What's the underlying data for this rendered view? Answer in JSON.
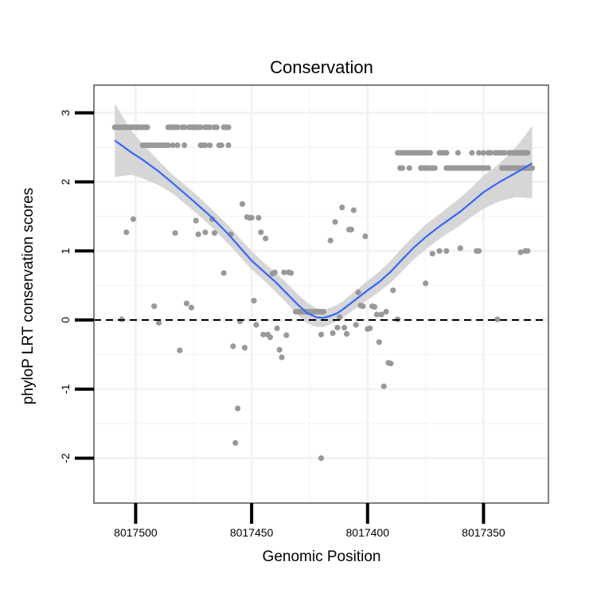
{
  "chart_data": {
    "type": "scatter",
    "title": "Conservation",
    "xlabel": "Genomic Position",
    "ylabel": "phyloP LRT conservation scores",
    "x_reversed": true,
    "xlim": [
      8017518,
      8017322
    ],
    "ylim": [
      -2.65,
      3.4
    ],
    "x_ticks": [
      8017500,
      8017450,
      8017400,
      8017350
    ],
    "x_tick_labels": [
      "8017500",
      "8017450",
      "8017400",
      "8017350"
    ],
    "y_ticks": [
      -2,
      -1,
      0,
      1,
      2,
      3
    ],
    "y_tick_labels": [
      "-2",
      "-1",
      "0",
      "1",
      "2",
      "3"
    ],
    "reference_line": {
      "y": 0,
      "style": "dashed"
    },
    "colors": {
      "points": "#999999",
      "smooth": "#3366ff",
      "ribbon": "#d6d6d6",
      "grid": "#f2f2f2",
      "panel_border": "#7f7f7f"
    },
    "series": [
      {
        "name": "scores",
        "kind": "points",
        "points": [
          [
            8017509,
            2.79
          ],
          [
            8017508,
            2.79
          ],
          [
            8017507,
            2.79
          ],
          [
            8017506,
            2.79
          ],
          [
            8017505,
            2.79
          ],
          [
            8017504,
            2.79
          ],
          [
            8017503,
            2.79
          ],
          [
            8017502,
            2.79
          ],
          [
            8017501,
            2.79
          ],
          [
            8017500,
            2.79
          ],
          [
            8017499,
            2.79
          ],
          [
            8017498,
            2.79
          ],
          [
            8017497,
            2.79
          ],
          [
            8017496,
            2.79
          ],
          [
            8017495,
            2.79
          ],
          [
            8017497,
            2.53
          ],
          [
            8017496,
            2.53
          ],
          [
            8017495,
            2.53
          ],
          [
            8017494,
            2.53
          ],
          [
            8017493,
            2.53
          ],
          [
            8017492,
            2.53
          ],
          [
            8017491,
            2.53
          ],
          [
            8017490,
            2.53
          ],
          [
            8017489,
            2.53
          ],
          [
            8017488,
            2.53
          ],
          [
            8017487,
            2.53
          ],
          [
            8017486,
            2.53
          ],
          [
            8017484,
            2.53
          ],
          [
            8017482,
            2.53
          ],
          [
            8017479,
            2.53
          ],
          [
            8017486,
            2.79
          ],
          [
            8017485,
            2.79
          ],
          [
            8017484,
            2.79
          ],
          [
            8017483,
            2.79
          ],
          [
            8017482,
            2.79
          ],
          [
            8017480,
            2.79
          ],
          [
            8017479,
            2.79
          ],
          [
            8017477,
            2.79
          ],
          [
            8017476,
            2.79
          ],
          [
            8017475,
            2.79
          ],
          [
            8017474,
            2.79
          ],
          [
            8017473,
            2.79
          ],
          [
            8017472,
            2.79
          ],
          [
            8017470,
            2.79
          ],
          [
            8017469,
            2.79
          ],
          [
            8017468,
            2.79
          ],
          [
            8017466,
            2.79
          ],
          [
            8017465,
            2.79
          ],
          [
            8017462,
            2.79
          ],
          [
            8017461,
            2.79
          ],
          [
            8017460,
            2.79
          ],
          [
            8017472,
            2.53
          ],
          [
            8017471,
            2.53
          ],
          [
            8017470,
            2.53
          ],
          [
            8017468,
            2.53
          ],
          [
            8017464,
            2.53
          ],
          [
            8017463,
            2.53
          ],
          [
            8017460,
            2.53
          ],
          [
            8017506,
            0.01
          ],
          [
            8017504,
            1.27
          ],
          [
            8017501,
            1.46
          ],
          [
            8017492,
            0.2
          ],
          [
            8017490,
            -0.04
          ],
          [
            8017483,
            1.26
          ],
          [
            8017481,
            -0.44
          ],
          [
            8017478,
            0.24
          ],
          [
            8017476,
            0.18
          ],
          [
            8017474,
            1.44
          ],
          [
            8017473,
            1.24
          ],
          [
            8017470,
            1.27
          ],
          [
            8017467,
            1.46
          ],
          [
            8017466,
            1.26
          ],
          [
            8017462,
            0.68
          ],
          [
            8017459,
            1.24
          ],
          [
            8017458,
            -0.38
          ],
          [
            8017457,
            -1.78
          ],
          [
            8017456,
            -1.28
          ],
          [
            8017455,
            -0.02
          ],
          [
            8017454,
            1.68
          ],
          [
            8017453,
            -0.4
          ],
          [
            8017452,
            1.49
          ],
          [
            8017451,
            1.48
          ],
          [
            8017450,
            1.48
          ],
          [
            8017449,
            0.28
          ],
          [
            8017448,
            -0.07
          ],
          [
            8017447,
            1.48
          ],
          [
            8017446,
            1.27
          ],
          [
            8017445,
            -0.21
          ],
          [
            8017444,
            1.18
          ],
          [
            8017443,
            -0.21
          ],
          [
            8017442,
            -0.25
          ],
          [
            8017441,
            0.67
          ],
          [
            8017440,
            0.69
          ],
          [
            8017439,
            -0.12
          ],
          [
            8017438,
            -0.43
          ],
          [
            8017437,
            -0.54
          ],
          [
            8017436,
            0.69
          ],
          [
            8017435,
            -0.22
          ],
          [
            8017434,
            0.69
          ],
          [
            8017433,
            0.68
          ],
          [
            8017431,
            0.12
          ],
          [
            8017430,
            0.12
          ],
          [
            8017429,
            0.12
          ],
          [
            8017428,
            0.12
          ],
          [
            8017427,
            0.12
          ],
          [
            8017426,
            0.12
          ],
          [
            8017425,
            0.12
          ],
          [
            8017424,
            0.12
          ],
          [
            8017423,
            0.12
          ],
          [
            8017422,
            0.12
          ],
          [
            8017421,
            0.12
          ],
          [
            8017420,
            0.12
          ],
          [
            8017419,
            0.12
          ],
          [
            8017420,
            -2.0
          ],
          [
            8017420,
            -0.21
          ],
          [
            8017416,
            1.15
          ],
          [
            8017415,
            -0.19
          ],
          [
            8017414,
            1.42
          ],
          [
            8017413,
            -0.11
          ],
          [
            8017412,
            0.04
          ],
          [
            8017411,
            1.63
          ],
          [
            8017410,
            -0.11
          ],
          [
            8017409,
            -0.2
          ],
          [
            8017408,
            1.31
          ],
          [
            8017407,
            1.31
          ],
          [
            8017406,
            1.59
          ],
          [
            8017405,
            -0.07
          ],
          [
            8017404,
            0.4
          ],
          [
            8017403,
            0.21
          ],
          [
            8017402,
            0.2
          ],
          [
            8017401,
            1.21
          ],
          [
            8017400,
            -0.13
          ],
          [
            8017399,
            -0.12
          ],
          [
            8017398,
            0.2
          ],
          [
            8017397,
            0.19
          ],
          [
            8017396,
            0.08
          ],
          [
            8017395,
            -0.32
          ],
          [
            8017394,
            0.08
          ],
          [
            8017393,
            -0.96
          ],
          [
            8017392,
            0.12
          ],
          [
            8017391,
            -0.62
          ],
          [
            8017390,
            -0.63
          ],
          [
            8017389,
            0.43
          ],
          [
            8017387,
            0.01
          ],
          [
            8017375,
            0.53
          ],
          [
            8017372,
            0.96
          ],
          [
            8017369,
            1.0
          ],
          [
            8017366,
            1.0
          ],
          [
            8017360,
            1.04
          ],
          [
            8017353,
            1.0
          ],
          [
            8017352,
            1.0
          ],
          [
            8017344,
            0.01
          ],
          [
            8017334,
            0.98
          ],
          [
            8017332,
            1.0
          ],
          [
            8017331,
            1.0
          ],
          [
            8017387,
            2.42
          ],
          [
            8017386,
            2.42
          ],
          [
            8017385,
            2.42
          ],
          [
            8017384,
            2.42
          ],
          [
            8017383,
            2.42
          ],
          [
            8017382,
            2.42
          ],
          [
            8017381,
            2.42
          ],
          [
            8017380,
            2.42
          ],
          [
            8017379,
            2.42
          ],
          [
            8017378,
            2.42
          ],
          [
            8017377,
            2.42
          ],
          [
            8017376,
            2.42
          ],
          [
            8017375,
            2.42
          ],
          [
            8017374,
            2.42
          ],
          [
            8017373,
            2.42
          ],
          [
            8017369,
            2.42
          ],
          [
            8017368,
            2.42
          ],
          [
            8017367,
            2.42
          ],
          [
            8017366,
            2.42
          ],
          [
            8017361,
            2.42
          ],
          [
            8017355,
            2.42
          ],
          [
            8017352,
            2.42
          ],
          [
            8017350,
            2.42
          ],
          [
            8017348,
            2.42
          ],
          [
            8017347,
            2.42
          ],
          [
            8017345,
            2.42
          ],
          [
            8017344,
            2.42
          ],
          [
            8017343,
            2.42
          ],
          [
            8017342,
            2.42
          ],
          [
            8017341,
            2.42
          ],
          [
            8017339,
            2.42
          ],
          [
            8017338,
            2.42
          ],
          [
            8017337,
            2.42
          ],
          [
            8017336,
            2.42
          ],
          [
            8017335,
            2.42
          ],
          [
            8017334,
            2.42
          ],
          [
            8017333,
            2.42
          ],
          [
            8017332,
            2.42
          ],
          [
            8017331,
            2.42
          ],
          [
            8017386,
            2.2
          ],
          [
            8017385,
            2.2
          ],
          [
            8017382,
            2.2
          ],
          [
            8017377,
            2.2
          ],
          [
            8017376,
            2.2
          ],
          [
            8017375,
            2.2
          ],
          [
            8017374,
            2.2
          ],
          [
            8017373,
            2.2
          ],
          [
            8017372,
            2.2
          ],
          [
            8017371,
            2.2
          ],
          [
            8017366,
            2.2
          ],
          [
            8017365,
            2.2
          ],
          [
            8017364,
            2.2
          ],
          [
            8017363,
            2.2
          ],
          [
            8017362,
            2.2
          ],
          [
            8017361,
            2.2
          ],
          [
            8017360,
            2.2
          ],
          [
            8017359,
            2.2
          ],
          [
            8017358,
            2.2
          ],
          [
            8017357,
            2.2
          ],
          [
            8017356,
            2.2
          ],
          [
            8017355,
            2.2
          ],
          [
            8017354,
            2.2
          ],
          [
            8017353,
            2.2
          ],
          [
            8017352,
            2.2
          ],
          [
            8017351,
            2.2
          ],
          [
            8017350,
            2.2
          ],
          [
            8017349,
            2.2
          ],
          [
            8017348,
            2.2
          ],
          [
            8017342,
            2.2
          ],
          [
            8017341,
            2.2
          ],
          [
            8017340,
            2.2
          ],
          [
            8017339,
            2.2
          ],
          [
            8017338,
            2.2
          ],
          [
            8017337,
            2.2
          ],
          [
            8017336,
            2.2
          ],
          [
            8017335,
            2.2
          ],
          [
            8017334,
            2.2
          ],
          [
            8017333,
            2.2
          ],
          [
            8017332,
            2.2
          ],
          [
            8017331,
            2.2
          ],
          [
            8017330,
            2.2
          ],
          [
            8017329,
            2.2
          ]
        ]
      },
      {
        "name": "loess fit",
        "kind": "line",
        "x": [
          8017509,
          8017502,
          8017497,
          8017490,
          8017484,
          8017475,
          8017467,
          8017460,
          8017455,
          8017450,
          8017445,
          8017440,
          8017435,
          8017430,
          8017426,
          8017422,
          8017419,
          8017416,
          8017413,
          8017410,
          8017405,
          8017400,
          8017395,
          8017390,
          8017385,
          8017380,
          8017375,
          8017368,
          8017360,
          8017355,
          8017350,
          8017343,
          8017336,
          8017329
        ],
        "y": [
          2.6,
          2.43,
          2.32,
          2.15,
          1.98,
          1.72,
          1.48,
          1.24,
          1.05,
          0.86,
          0.71,
          0.56,
          0.39,
          0.22,
          0.1,
          0.04,
          0.03,
          0.06,
          0.1,
          0.17,
          0.3,
          0.43,
          0.55,
          0.7,
          0.88,
          1.05,
          1.2,
          1.38,
          1.57,
          1.71,
          1.85,
          2.0,
          2.13,
          2.27
        ]
      },
      {
        "name": "confidence band",
        "kind": "ribbon",
        "x": [
          8017509,
          8017502,
          8017497,
          8017490,
          8017484,
          8017475,
          8017467,
          8017460,
          8017455,
          8017450,
          8017445,
          8017440,
          8017435,
          8017430,
          8017426,
          8017422,
          8017419,
          8017416,
          8017413,
          8017410,
          8017405,
          8017400,
          8017395,
          8017390,
          8017385,
          8017380,
          8017375,
          8017368,
          8017360,
          8017355,
          8017350,
          8017343,
          8017336,
          8017329
        ],
        "upper": [
          3.13,
          2.75,
          2.55,
          2.3,
          2.1,
          1.85,
          1.6,
          1.37,
          1.18,
          1.0,
          0.84,
          0.7,
          0.54,
          0.37,
          0.25,
          0.17,
          0.15,
          0.18,
          0.22,
          0.29,
          0.43,
          0.57,
          0.7,
          0.86,
          1.05,
          1.22,
          1.38,
          1.56,
          1.77,
          1.92,
          2.09,
          2.27,
          2.5,
          2.81
        ],
        "lower": [
          2.07,
          2.1,
          2.05,
          1.95,
          1.83,
          1.58,
          1.34,
          1.1,
          0.92,
          0.73,
          0.58,
          0.42,
          0.25,
          0.07,
          -0.05,
          -0.1,
          -0.1,
          -0.06,
          -0.02,
          0.05,
          0.17,
          0.29,
          0.41,
          0.54,
          0.71,
          0.88,
          1.02,
          1.2,
          1.37,
          1.5,
          1.61,
          1.72,
          1.78,
          1.76
        ]
      }
    ]
  }
}
